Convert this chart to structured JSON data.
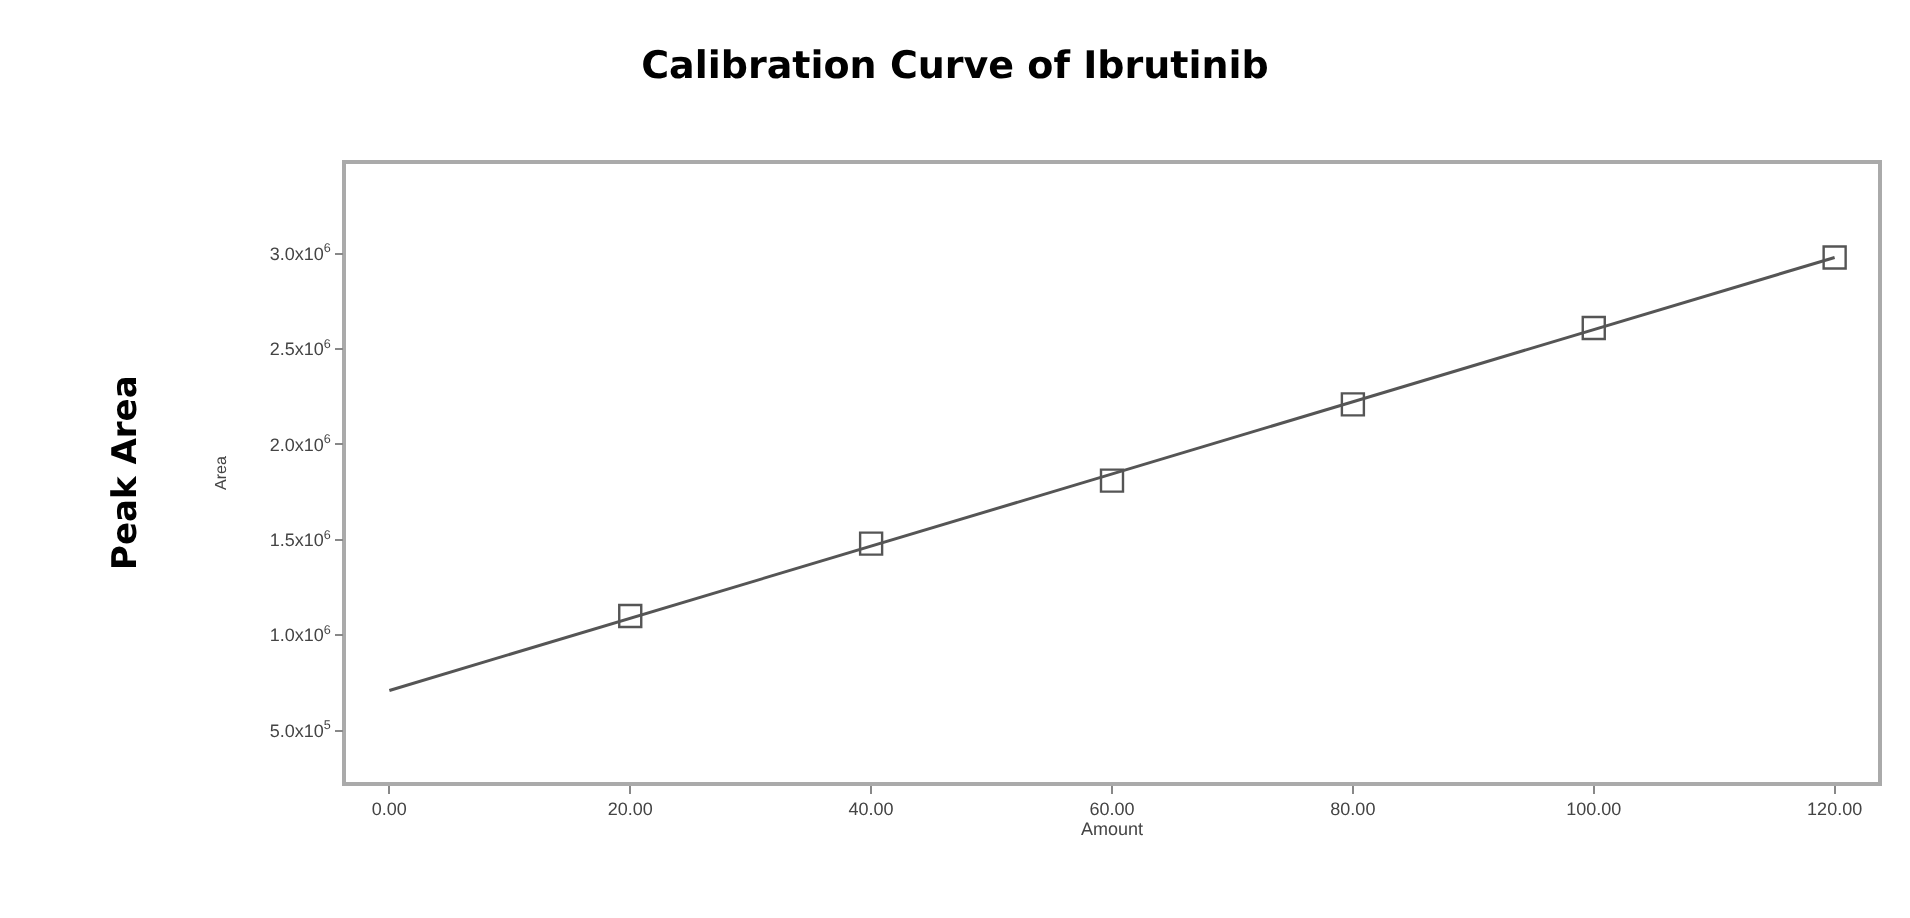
{
  "chart_data": {
    "type": "scatter",
    "title": "Calibration Curve of Ibrutinib",
    "xlabel": "Amount",
    "ylabel": "Area",
    "annotations": [
      "Peak Area"
    ],
    "series": [
      {
        "color": "#555555",
        "marker": "square",
        "x": [
          20,
          40,
          60,
          80,
          100,
          120
        ],
        "values": [
          1100000,
          1480000,
          1810000,
          2210000,
          2610000,
          2980000
        ]
      },
      {
        "type": "line",
        "color": "#555555",
        "line_style": "solid",
        "x": [
          0,
          120
        ],
        "values": [
          710000,
          2980000
        ]
      }
    ],
    "xlim": [
      -3.6,
      123.6
    ],
    "ylim": [
      230000,
      3470000
    ],
    "xticks": [
      {
        "value": 0,
        "label": "0.00"
      },
      {
        "value": 20,
        "label": "20.00"
      },
      {
        "value": 40,
        "label": "40.00"
      },
      {
        "value": 60,
        "label": "60.00"
      },
      {
        "value": 80,
        "label": "80.00"
      },
      {
        "value": 100,
        "label": "100.00"
      },
      {
        "value": 120,
        "label": "120.00"
      }
    ],
    "yticks": [
      {
        "value": 500000,
        "label": "5.0x10$^{5}$"
      },
      {
        "value": 1000000,
        "label": "1.0x10$^{6}$"
      },
      {
        "value": 1500000,
        "label": "1.5x10$^{6}$"
      },
      {
        "value": 2000000,
        "label": "2.0x10$^{6}$"
      },
      {
        "value": 2500000,
        "label": "2.5x10$^{6}$"
      },
      {
        "value": 3000000,
        "label": "3.0x10$^{6}$"
      }
    ]
  }
}
